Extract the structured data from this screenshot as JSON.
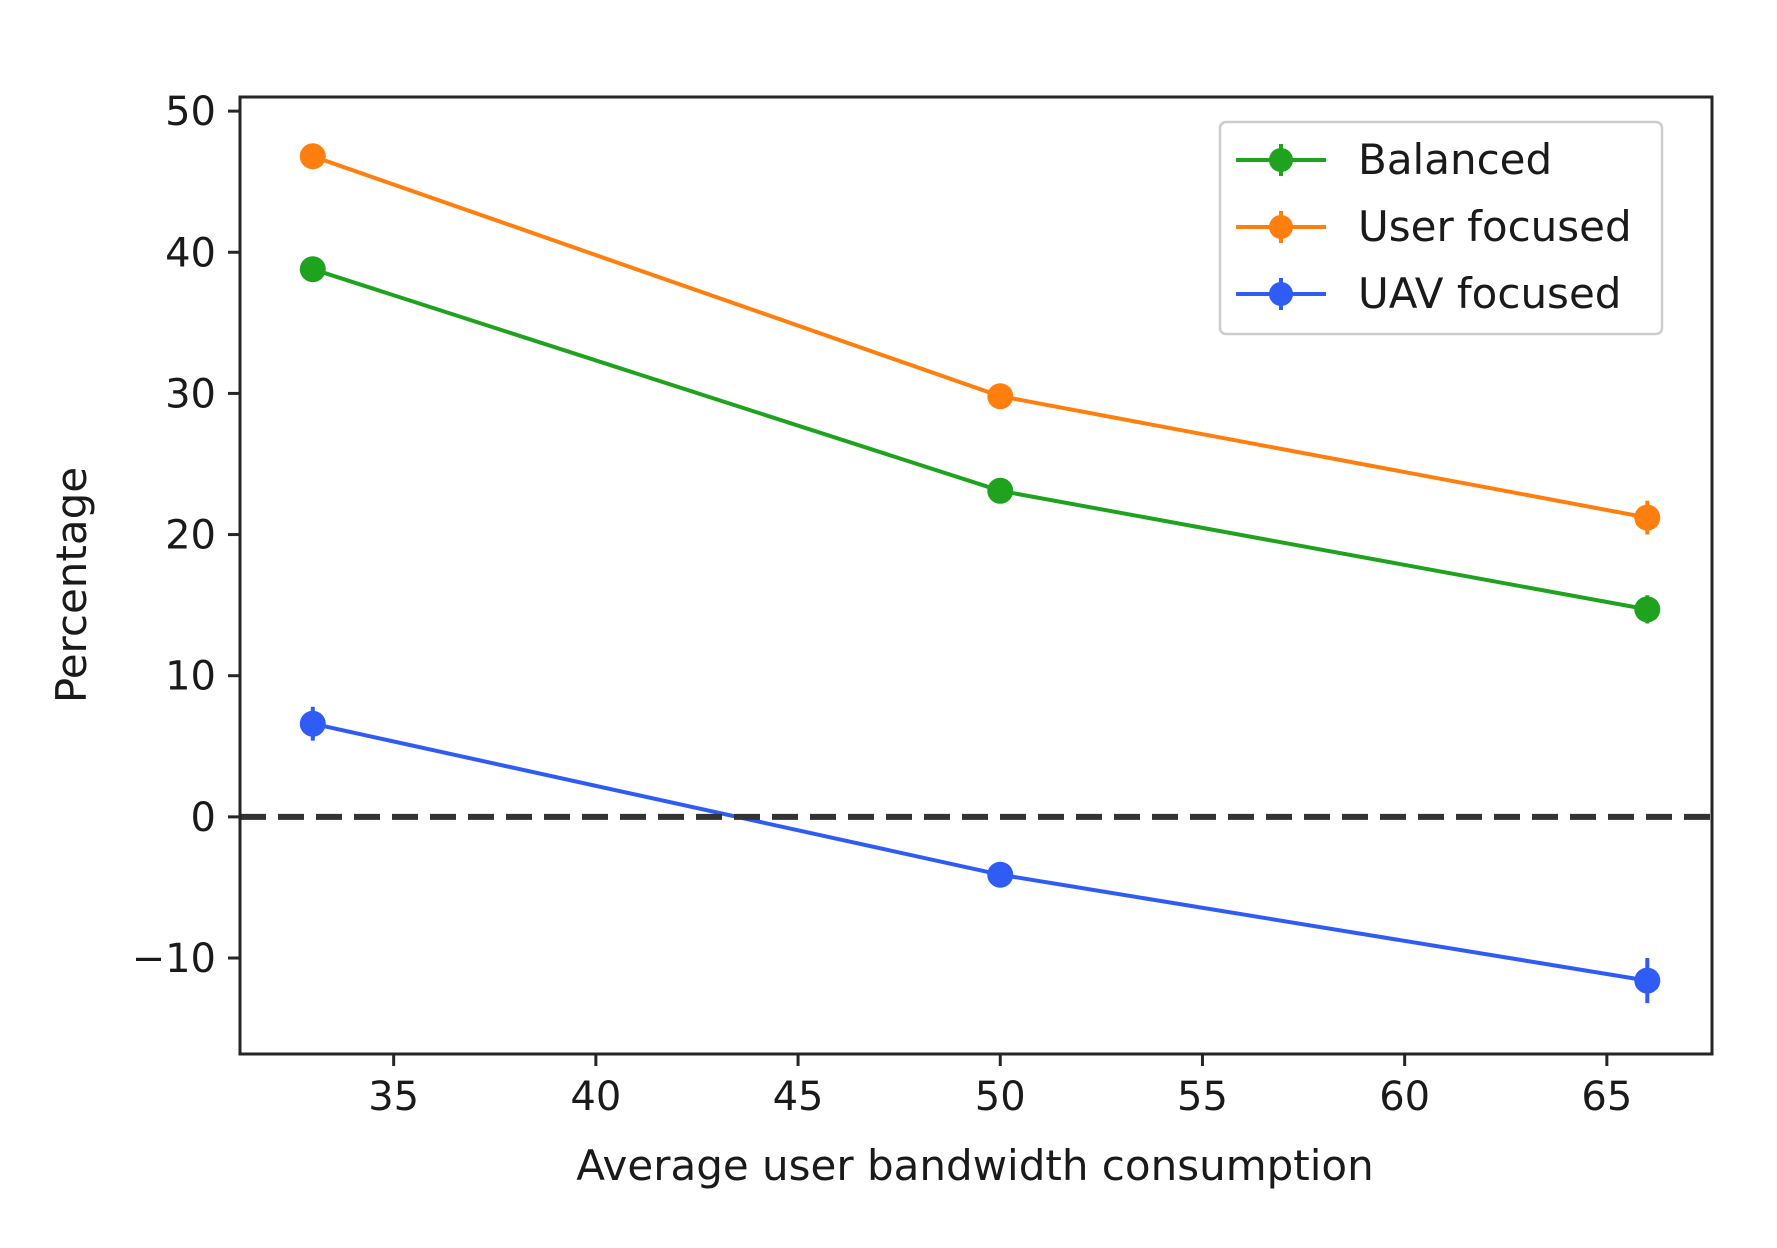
{
  "chart_data": {
    "type": "line",
    "title": "",
    "xlabel": "Average user bandwidth consumption",
    "ylabel": "Percentage",
    "xlim": [
      31.2,
      67.6
    ],
    "ylim": [
      -16.8,
      51.0
    ],
    "xticks": [
      35,
      40,
      45,
      50,
      55,
      60,
      65
    ],
    "yticks": [
      50,
      40,
      30,
      20,
      10,
      0,
      -10
    ],
    "ytick_labels": [
      "50",
      "40",
      "30",
      "20",
      "10",
      "0",
      "−10"
    ],
    "xtick_labels": [
      "35",
      "40",
      "45",
      "50",
      "55",
      "60",
      "65"
    ],
    "x": [
      33,
      50,
      66
    ],
    "reference_line": {
      "y": 0,
      "style": "dashed",
      "color": "#333333"
    },
    "grid": false,
    "legend_placement": "top-right",
    "series": [
      {
        "name": "Balanced",
        "color": "#1fa31f",
        "values": [
          38.8,
          23.1,
          14.7
        ],
        "errors": [
          0.6,
          0.7,
          1.0
        ]
      },
      {
        "name": "User focused",
        "color": "#ff7f0e",
        "values": [
          46.8,
          29.8,
          21.2
        ],
        "errors": [
          0.6,
          0.7,
          1.2
        ]
      },
      {
        "name": "UAV focused",
        "color": "#2f5cf5",
        "values": [
          6.6,
          -4.1,
          -11.6
        ],
        "errors": [
          1.2,
          0.7,
          1.6
        ]
      }
    ]
  }
}
